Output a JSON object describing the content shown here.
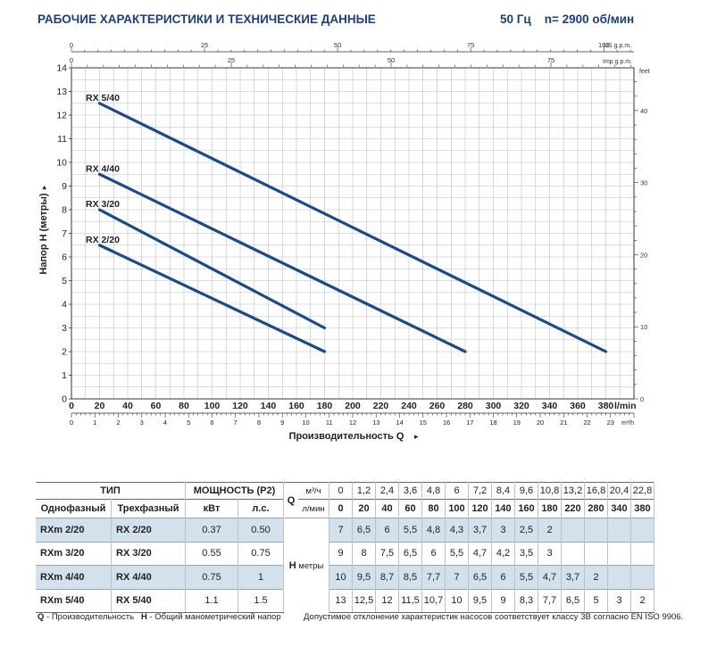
{
  "header": {
    "title": "РАБОЧИЕ ХАРАКТЕРИСТИКИ И ТЕХНИЧЕСКИЕ ДАННЫЕ",
    "right": "50 Гц    n= 2900 об/мин"
  },
  "chart_data": {
    "type": "line",
    "ylabel": "Напор H (метры)",
    "xlabel": "Производительность Q",
    "x_unit_lmin": "l/min",
    "x_unit_m3h": "m³/h",
    "x_unit_usgpm": "US g.p.m.",
    "x_unit_impgpm": "Imp g.p.m.",
    "y_unit_feet": "feet",
    "xlim": [
      0,
      400
    ],
    "ylim": [
      0,
      14
    ],
    "grid": true,
    "x_ticks_lmin": [
      0,
      20,
      40,
      60,
      80,
      100,
      120,
      140,
      160,
      180,
      200,
      220,
      240,
      260,
      280,
      300,
      320,
      340,
      360,
      380
    ],
    "x_ticks_m3h": [
      0,
      1,
      2,
      3,
      4,
      5,
      6,
      7,
      8,
      9,
      10,
      11,
      12,
      13,
      14,
      15,
      16,
      17,
      18,
      19,
      20,
      21,
      22,
      23
    ],
    "x_ticks_usgpm": [
      0,
      25,
      50,
      75,
      100
    ],
    "x_ticks_impgpm": [
      0,
      25,
      50,
      75
    ],
    "y_ticks": [
      0,
      1,
      2,
      3,
      4,
      5,
      6,
      7,
      8,
      9,
      10,
      11,
      12,
      13,
      14
    ],
    "y_ticks_feet": [
      0,
      10,
      20,
      30,
      40
    ],
    "series": [
      {
        "name": "RX 5/40",
        "x": [
          20,
          380
        ],
        "y": [
          12.5,
          2
        ]
      },
      {
        "name": "RX 4/40",
        "x": [
          20,
          280
        ],
        "y": [
          9.5,
          2
        ]
      },
      {
        "name": "RX 3/20",
        "x": [
          20,
          180
        ],
        "y": [
          8,
          3
        ]
      },
      {
        "name": "RX 2/20",
        "x": [
          20,
          180
        ],
        "y": [
          6.5,
          2
        ]
      }
    ],
    "line_color": "#1b4a86"
  },
  "table": {
    "h_tip": "ТИП",
    "h_power": "МОЩНОСТЬ (P2)",
    "h_q": "Q",
    "h_m3h": "м³/ч",
    "h_lmin": "л/мин",
    "h_single": "Однофазный",
    "h_three": "Трехфазный",
    "h_kw": "кВт",
    "h_hp": "л.с.",
    "h_head": "H",
    "h_meters": "метры",
    "q_m3h": [
      "0",
      "1,2",
      "2,4",
      "3,6",
      "4,8",
      "6",
      "7,2",
      "8,4",
      "9,6",
      "10,8",
      "13,2",
      "16,8",
      "20,4",
      "22,8"
    ],
    "q_lmin": [
      "0",
      "20",
      "40",
      "60",
      "80",
      "100",
      "120",
      "140",
      "160",
      "180",
      "220",
      "280",
      "340",
      "380"
    ],
    "rows": [
      {
        "single": "RXm 2/20",
        "three": "RX 2/20",
        "kw": "0.37",
        "hp": "0.50",
        "h": [
          "7",
          "6,5",
          "6",
          "5,5",
          "4,8",
          "4,3",
          "3,7",
          "3",
          "2,5",
          "2",
          "",
          "",
          "",
          ""
        ]
      },
      {
        "single": "RXm 3/20",
        "three": "RX 3/20",
        "kw": "0.55",
        "hp": "0.75",
        "h": [
          "9",
          "8",
          "7,5",
          "6,5",
          "6",
          "5,5",
          "4,7",
          "4,2",
          "3,5",
          "3",
          "",
          "",
          "",
          ""
        ]
      },
      {
        "single": "RXm 4/40",
        "three": "RX 4/40",
        "kw": "0.75",
        "hp": "1",
        "h": [
          "10",
          "9,5",
          "8,7",
          "8,5",
          "7,7",
          "7",
          "6,5",
          "6",
          "5,5",
          "4,7",
          "3,7",
          "2",
          "",
          ""
        ]
      },
      {
        "single": "RXm 5/40",
        "three": "RX 5/40",
        "kw": "1.1",
        "hp": "1.5",
        "h": [
          "13",
          "12,5",
          "12",
          "11,5",
          "10,7",
          "10",
          "9,5",
          "9",
          "8,3",
          "7,7",
          "6,5",
          "5",
          "3",
          "2"
        ]
      }
    ]
  },
  "footer": {
    "left_q": "Q",
    "left_q_text": " - Производительность   ",
    "left_h": "H",
    "left_h_text": " - Общий манометрический напор",
    "right": "Допустимое отклонение характеристик насосов соответствует классу 3B согласно EN ISO 9906."
  }
}
